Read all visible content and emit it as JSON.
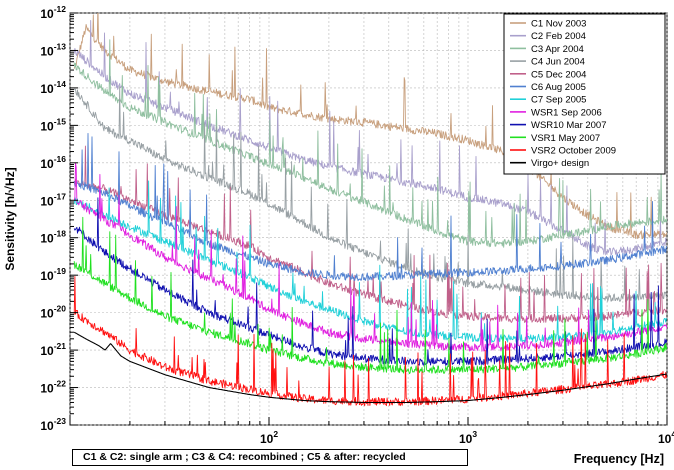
{
  "chart_data": {
    "type": "line",
    "title": "",
    "xlabel": "Frequency [Hz]",
    "ylabel": "Sensitivity [h/√Hz]",
    "x_scale": "log",
    "y_scale": "log",
    "xlim": [
      10,
      10000
    ],
    "ylim": [
      1e-23,
      1e-12
    ],
    "grid": true,
    "legend_position": "top-right",
    "x_ticks": [
      {
        "value": 100,
        "base": "10",
        "exp": "2"
      },
      {
        "value": 1000,
        "base": "10",
        "exp": "3"
      },
      {
        "value": 10000,
        "base": "10",
        "exp": "4"
      }
    ],
    "y_ticks": [
      {
        "value": 1e-12,
        "base": "10",
        "exp": "-12"
      },
      {
        "value": 1e-13,
        "base": "10",
        "exp": "-13"
      },
      {
        "value": 1e-14,
        "base": "10",
        "exp": "-14"
      },
      {
        "value": 1e-15,
        "base": "10",
        "exp": "-15"
      },
      {
        "value": 1e-16,
        "base": "10",
        "exp": "-16"
      },
      {
        "value": 1e-17,
        "base": "10",
        "exp": "-17"
      },
      {
        "value": 1e-18,
        "base": "10",
        "exp": "-18"
      },
      {
        "value": 1e-19,
        "base": "10",
        "exp": "-19"
      },
      {
        "value": 1e-20,
        "base": "10",
        "exp": "-20"
      },
      {
        "value": 1e-21,
        "base": "10",
        "exp": "-21"
      },
      {
        "value": 1e-22,
        "base": "10",
        "exp": "-22"
      },
      {
        "value": 1e-23,
        "base": "10",
        "exp": "-23"
      }
    ],
    "annotation": "C1 & C2: single arm ; C3 & C4: recombined ; C5 & after: recycled",
    "series": [
      {
        "name": "C1 Nov 2003",
        "color": "#c8a07e",
        "x": [
          10.5,
          12,
          15,
          20,
          30,
          50,
          80,
          100,
          150,
          200,
          300,
          500,
          700,
          1000,
          1500,
          2000,
          3000,
          4000,
          5000,
          7000,
          10000
        ],
        "y": [
          3e-14,
          4e-13,
          1e-13,
          3e-14,
          1.5e-14,
          8e-15,
          5e-15,
          3e-15,
          2e-15,
          1.5e-15,
          1.2e-15,
          8e-16,
          6e-16,
          4e-16,
          2e-16,
          8e-17,
          1.2e-17,
          4e-18,
          2e-18,
          1.2e-18,
          1.2e-18
        ]
      },
      {
        "name": "C2 Feb 2004",
        "color": "#a9a0cc",
        "x": [
          10.5,
          15,
          20,
          30,
          50,
          80,
          100,
          150,
          200,
          300,
          500,
          700,
          1000,
          1500,
          2000,
          3000,
          4000,
          5000,
          7000,
          10000
        ],
        "y": [
          1e-13,
          2e-14,
          7e-15,
          3e-15,
          1e-15,
          4e-16,
          2.5e-16,
          1.2e-16,
          8e-17,
          5e-17,
          3e-17,
          2e-17,
          1.2e-17,
          8e-18,
          5e-18,
          1.5e-18,
          6e-19,
          4e-19,
          5e-19,
          8e-19
        ]
      },
      {
        "name": "C3 Apr 2004",
        "color": "#8fbf9f",
        "x": [
          10.5,
          15,
          20,
          30,
          50,
          80,
          100,
          150,
          200,
          300,
          500,
          700,
          1000,
          1500,
          2000,
          3000,
          4000,
          5000,
          7000,
          10000
        ],
        "y": [
          4e-14,
          8e-15,
          3e-15,
          1.2e-15,
          4e-16,
          1.5e-16,
          9e-17,
          4e-17,
          2e-17,
          9e-18,
          3e-18,
          1.5e-18,
          8e-19,
          7e-19,
          8e-19,
          1.2e-18,
          1.5e-18,
          2e-18,
          2.5e-18,
          3e-18
        ]
      },
      {
        "name": "C4 Jun 2004",
        "color": "#98a0a4",
        "x": [
          10.5,
          15,
          20,
          30,
          50,
          80,
          100,
          150,
          200,
          300,
          500,
          700,
          1000,
          1500,
          2000,
          3000,
          5000,
          7000,
          10000
        ],
        "y": [
          1e-14,
          8e-16,
          4e-16,
          1.2e-16,
          4e-17,
          1.5e-17,
          8e-18,
          2.5e-18,
          1e-18,
          4e-19,
          1.5e-19,
          9e-20,
          6e-20,
          5e-20,
          4e-20,
          3e-20,
          2.5e-20,
          2.5e-20,
          3e-20
        ]
      },
      {
        "name": "C5 Dec 2004",
        "color": "#c0608a",
        "x": [
          10.5,
          15,
          20,
          30,
          50,
          80,
          100,
          150,
          200,
          300,
          500,
          700,
          1000,
          1500,
          2000,
          3000,
          5000,
          7000,
          10000
        ],
        "y": [
          3e-17,
          2e-17,
          1e-17,
          4e-18,
          1.5e-18,
          6e-19,
          3e-19,
          1.2e-19,
          6e-20,
          3e-20,
          1.5e-20,
          1e-20,
          8e-21,
          7e-21,
          7e-21,
          7e-21,
          8e-21,
          1e-20,
          1.2e-20
        ]
      },
      {
        "name": "C6 Aug 2005",
        "color": "#5080d0",
        "x": [
          10.5,
          15,
          20,
          30,
          50,
          80,
          100,
          150,
          200,
          300,
          500,
          700,
          1000,
          1500,
          2000,
          3000,
          5000,
          7000,
          10000
        ],
        "y": [
          3e-17,
          1.5e-17,
          7e-18,
          2.5e-18,
          7e-19,
          3e-19,
          2e-19,
          1.2e-19,
          1e-19,
          9e-20,
          1e-19,
          1.1e-19,
          1.2e-19,
          1.3e-19,
          1.5e-19,
          1.8e-19,
          2.5e-19,
          3.5e-19,
          5e-19
        ]
      },
      {
        "name": "C7 Sep 2005",
        "color": "#20d0d8",
        "x": [
          10.5,
          15,
          20,
          30,
          50,
          80,
          100,
          150,
          200,
          300,
          500,
          700,
          1000,
          1500,
          2000,
          3000,
          5000,
          7000,
          10000
        ],
        "y": [
          1e-17,
          4e-18,
          2e-18,
          8e-19,
          2.5e-19,
          9e-20,
          5e-20,
          2e-20,
          1.2e-20,
          6e-21,
          3e-21,
          2.5e-21,
          2.2e-21,
          2e-21,
          2e-21,
          2.2e-21,
          2.8e-21,
          4e-21,
          6e-21
        ]
      },
      {
        "name": "WSR1 Sep 2006",
        "color": "#e020e0",
        "x": [
          10.5,
          15,
          20,
          30,
          50,
          80,
          100,
          150,
          200,
          300,
          500,
          700,
          1000,
          1500,
          2000,
          3000,
          5000,
          7000,
          10000
        ],
        "y": [
          1e-17,
          3e-18,
          1.2e-18,
          3e-19,
          8e-20,
          2.5e-20,
          1.2e-20,
          5e-21,
          3e-21,
          2e-21,
          1.5e-21,
          1.3e-21,
          1.2e-21,
          1.2e-21,
          1.3e-21,
          1.6e-21,
          2.2e-21,
          3e-21,
          4.5e-21
        ]
      },
      {
        "name": "WSR10 Mar 2007",
        "color": "#1010b0",
        "x": [
          10.5,
          15,
          20,
          30,
          50,
          80,
          100,
          150,
          200,
          300,
          500,
          700,
          1000,
          1500,
          2000,
          3000,
          5000,
          7000,
          10000
        ],
        "y": [
          2e-18,
          4e-19,
          1.5e-19,
          4e-20,
          1e-20,
          4e-21,
          2.5e-21,
          1.2e-21,
          8e-22,
          6e-22,
          5e-22,
          5e-22,
          5e-22,
          5.5e-22,
          6e-22,
          7e-22,
          9e-22,
          1.2e-21,
          1.6e-21
        ]
      },
      {
        "name": "VSR1 May 2007",
        "color": "#20e020",
        "x": [
          10.5,
          15,
          20,
          30,
          50,
          80,
          100,
          150,
          200,
          300,
          500,
          700,
          1000,
          1500,
          2000,
          3000,
          5000,
          7000,
          10000
        ],
        "y": [
          2e-19,
          6e-20,
          2.5e-20,
          8e-21,
          3e-21,
          1.5e-21,
          1e-21,
          6e-22,
          4.5e-22,
          3.5e-22,
          3e-22,
          3e-22,
          3e-22,
          3.3e-22,
          3.6e-22,
          4.5e-22,
          6e-22,
          8e-22,
          1.2e-21
        ]
      },
      {
        "name": "VSR2 October 2009",
        "color": "#ff1010",
        "x": [
          10.5,
          15,
          20,
          30,
          50,
          80,
          100,
          150,
          200,
          300,
          500,
          700,
          1000,
          1500,
          2000,
          3000,
          5000,
          7000,
          10000
        ],
        "y": [
          1e-20,
          3e-21,
          1e-21,
          3.5e-22,
          1.5e-22,
          9e-23,
          7e-23,
          5e-23,
          4.5e-23,
          4.2e-23,
          4.2e-23,
          4.5e-23,
          5e-23,
          6e-23,
          7e-23,
          9e-23,
          1.2e-22,
          1.6e-22,
          2.2e-22
        ]
      },
      {
        "name": "Virgo+ design",
        "color": "#000000",
        "x": [
          10.5,
          12,
          14,
          15,
          16,
          18,
          20,
          30,
          50,
          80,
          100,
          150,
          200,
          300,
          500,
          700,
          1000,
          1500,
          2000,
          3000,
          5000,
          7000,
          10000
        ],
        "y": [
          3e-21,
          2e-21,
          1.3e-21,
          1e-21,
          1.5e-21,
          7e-22,
          5e-22,
          2.2e-22,
          1e-22,
          6.5e-23,
          5.5e-23,
          4.5e-23,
          4.2e-23,
          4e-23,
          4e-23,
          4.2e-23,
          4.5e-23,
          5.5e-23,
          6.5e-23,
          8.5e-23,
          1.25e-22,
          1.7e-22,
          2.3e-22
        ]
      }
    ]
  }
}
